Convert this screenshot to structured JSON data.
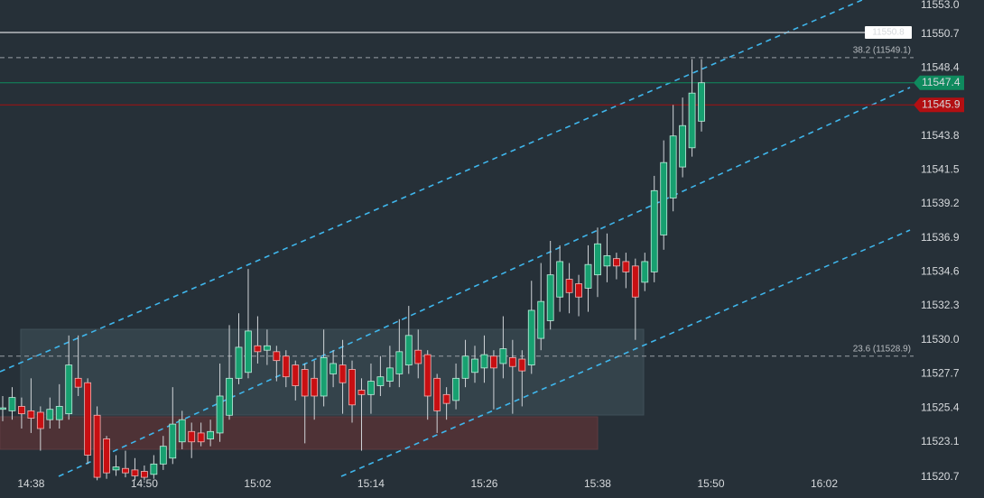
{
  "chart_data": {
    "type": "candlestick",
    "categories": [
      null,
      null,
      null,
      "14:38",
      null,
      null,
      null,
      null,
      null,
      null,
      null,
      null,
      null,
      null,
      null,
      "14:50",
      null,
      null,
      null,
      null,
      null,
      null,
      null,
      null,
      null,
      null,
      null,
      "15:02",
      null,
      null,
      null,
      null,
      null,
      null,
      null,
      null,
      null,
      null,
      null,
      "15:14",
      null,
      null,
      null,
      null,
      null,
      null,
      null,
      null,
      null,
      null,
      null,
      "15:26",
      null,
      null,
      null,
      null,
      null,
      null,
      null,
      null,
      null,
      null,
      null,
      "15:38",
      null,
      null,
      null,
      null,
      null,
      null,
      null,
      null,
      null,
      null,
      null,
      "15:50",
      null,
      null,
      null,
      null,
      null,
      null,
      null,
      null,
      null,
      null,
      null,
      "16:02",
      null
    ],
    "open": [
      11525.3,
      11525.2,
      11525.5,
      11525.2,
      11525.1,
      11524.6,
      11524.6,
      11525.0,
      11527.4,
      11527.1,
      11524.9,
      11523.3,
      11521.2,
      11521.3,
      11521.2,
      11521.1,
      11520.9,
      11521.6,
      11522.0,
      11523.1,
      11523.8,
      11523.7,
      11523.3,
      11523.7,
      11524.9,
      11527.4,
      11527.8,
      11529.6,
      11529.3,
      11529.2,
      11528.9,
      11528.3,
      11528.0,
      11527.4,
      11526.2,
      11527.7,
      11528.3,
      11528.0,
      11526.6,
      11526.3,
      11526.9,
      11527.2,
      11527.7,
      11528.3,
      11529.3,
      11529.0,
      11527.4,
      11526.3,
      11525.9,
      11527.4,
      11527.8,
      11528.1,
      11528.9,
      11528.4,
      11528.8,
      11528.7,
      11528.3,
      11530.1,
      11531.3,
      11532.9,
      11534.1,
      11533.8,
      11533.5,
      11534.4,
      11535.0,
      11535.5,
      11535.3,
      11535.0,
      11533.9,
      11534.6,
      11537.1,
      11539.6,
      11541.7,
      11543.0,
      11544.8,
      null,
      null,
      null,
      null,
      null,
      null,
      null,
      null,
      null,
      null,
      null,
      null,
      null,
      null
    ],
    "high": [
      11526.2,
      11526.8,
      11526.1,
      11527.4,
      11525.5,
      11526.1,
      11527.0,
      11530.3,
      11530.3,
      11527.4,
      11525.5,
      11523.5,
      11522.2,
      11522.5,
      11522.0,
      11521.5,
      11522.2,
      11523.5,
      11526.8,
      11525.2,
      11524.4,
      11524.4,
      11524.6,
      11528.4,
      11531.0,
      11531.8,
      11534.8,
      11531.6,
      11530.7,
      11529.6,
      11529.3,
      11528.6,
      11528.4,
      11528.6,
      11530.7,
      11529.3,
      11530.0,
      11528.6,
      11527.4,
      11528.4,
      11528.9,
      11529.6,
      11531.4,
      11532.3,
      11530.7,
      11529.3,
      11527.7,
      11526.8,
      11528.4,
      11530.0,
      11529.6,
      11530.3,
      11529.3,
      11531.6,
      11530.0,
      11529.3,
      11534.0,
      11535.2,
      11536.7,
      11536.4,
      11535.2,
      11534.4,
      11536.4,
      11537.6,
      11537.2,
      11535.9,
      11535.9,
      11535.5,
      11535.9,
      11541.1,
      11543.5,
      11545.9,
      11546.4,
      11549.0,
      11549.0,
      null,
      null,
      null,
      null,
      null,
      null,
      null,
      null,
      null,
      null,
      null,
      null,
      null,
      null
    ],
    "low": [
      11524.5,
      11524.6,
      11524.0,
      11523.7,
      11522.5,
      11524.0,
      11524.0,
      11524.6,
      11526.2,
      11521.6,
      11520.5,
      11520.6,
      11520.8,
      11520.7,
      11520.5,
      11520.5,
      11520.6,
      11521.2,
      11521.6,
      11522.6,
      11522.0,
      11522.8,
      11522.8,
      11523.1,
      11524.6,
      11527.0,
      11527.4,
      11528.4,
      11528.3,
      11527.2,
      11526.8,
      11525.9,
      11523.0,
      11524.6,
      11525.5,
      11526.8,
      11525.0,
      11524.4,
      11522.5,
      11525.0,
      11526.2,
      11526.8,
      11526.8,
      11527.7,
      11527.4,
      11524.6,
      11523.7,
      11524.6,
      11525.3,
      11526.8,
      11527.1,
      11527.1,
      11525.3,
      11527.4,
      11525.0,
      11525.5,
      11527.7,
      11529.3,
      11530.7,
      11531.9,
      11531.8,
      11531.6,
      11531.9,
      11532.9,
      11533.9,
      11534.1,
      11533.5,
      11530.0,
      11533.3,
      11533.9,
      11536.1,
      11538.7,
      11541.0,
      11542.4,
      11544.1,
      null,
      null,
      null,
      null,
      null,
      null,
      null,
      null,
      null,
      null,
      null,
      null,
      null,
      null
    ],
    "close": [
      11525.4,
      11526.1,
      11525.0,
      11524.7,
      11524.0,
      11525.3,
      11525.5,
      11528.3,
      11526.8,
      11522.2,
      11520.7,
      11521.0,
      11521.4,
      11521.0,
      11520.8,
      11520.7,
      11521.6,
      11522.8,
      11524.3,
      11524.6,
      11523.1,
      11523.1,
      11523.8,
      11526.2,
      11527.4,
      11529.5,
      11530.6,
      11529.2,
      11529.6,
      11528.6,
      11527.5,
      11526.9,
      11526.2,
      11526.2,
      11528.8,
      11528.4,
      11527.1,
      11525.6,
      11526.3,
      11527.2,
      11527.5,
      11528.1,
      11529.2,
      11530.3,
      11528.4,
      11526.2,
      11525.2,
      11525.7,
      11527.4,
      11528.9,
      11528.7,
      11529.0,
      11528.1,
      11529.4,
      11528.2,
      11527.9,
      11532.0,
      11532.6,
      11534.4,
      11535.3,
      11533.2,
      11532.9,
      11535.1,
      11536.5,
      11535.7,
      11535.0,
      11534.6,
      11532.9,
      11535.3,
      11540.1,
      11542.0,
      11543.8,
      11544.5,
      11546.7,
      11547.4,
      null,
      null,
      null,
      null,
      null,
      null,
      null,
      null,
      null,
      null,
      null,
      null,
      null,
      null
    ],
    "up_color": "#17a070",
    "down_color": "#c80f12",
    "ylim": [
      11519.3,
      11553.0
    ],
    "yticks": [
      {
        "value": 11553.0,
        "label": "11553.0"
      },
      11550.7,
      11548.4,
      11543.8,
      11541.5,
      11539.2,
      11536.9,
      11534.6,
      11532.3,
      {
        "value": 11530.0,
        "label": "11530.0"
      },
      11527.7,
      11525.4,
      11523.1,
      11520.7
    ],
    "grid": false,
    "price_lines": [
      {
        "value": 11550.8,
        "color": "#b8bcc0",
        "box_color": "#ffffff",
        "text_color": "#222222"
      },
      {
        "value": 11547.4,
        "color": "#0f8a5e",
        "box_color": "#0f8a5e",
        "text_color": "#ffffff"
      },
      {
        "value": 11545.9,
        "color": "#a51010",
        "box_color": "#b30f12",
        "text_color": "#ffffff"
      }
    ],
    "levels": [
      {
        "label": "38.2 (11549.1)",
        "value": 11549.1
      },
      {
        "label": "23.6 (11528.9)",
        "value": 11528.9
      }
    ]
  }
}
